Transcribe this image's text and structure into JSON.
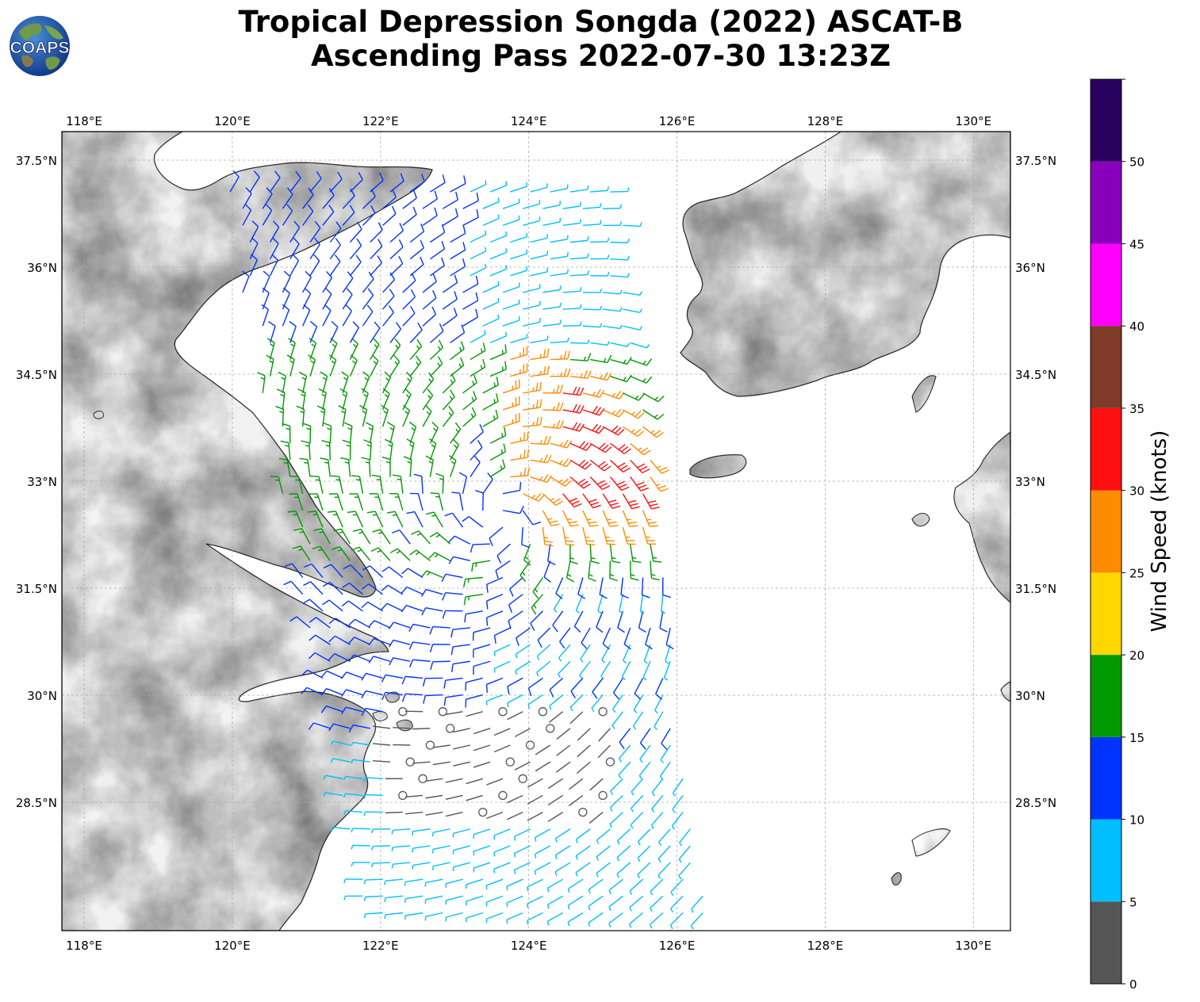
{
  "title": {
    "line1": "Tropical Depression Songda (2022) ASCAT-B",
    "line2": "Ascending Pass 2022-07-30 13:23Z"
  },
  "logo": {
    "text": "COAPS",
    "icon": "globe-icon"
  },
  "map": {
    "lon_range": [
      117.7,
      130.5
    ],
    "lat_range": [
      26.7,
      37.9
    ],
    "lon_ticks": [
      "118°E",
      "120°E",
      "122°E",
      "124°E",
      "126°E",
      "128°E",
      "130°E"
    ],
    "lon_tick_values": [
      118,
      120,
      122,
      124,
      126,
      128,
      130
    ],
    "lat_ticks": [
      "28.5°N",
      "30°N",
      "31.5°N",
      "33°N",
      "34.5°N",
      "36°N",
      "37.5°N"
    ],
    "lat_tick_values": [
      28.5,
      30,
      31.5,
      33,
      34.5,
      36,
      37.5
    ],
    "gridlines": true,
    "center_of_circulation": {
      "lon": 123.6,
      "lat": 32.5
    }
  },
  "colorbar": {
    "label": "Wind Speed (knots)",
    "ticks": [
      "0",
      "5",
      "10",
      "15",
      "20",
      "25",
      "30",
      "35",
      "40",
      "45",
      "50"
    ],
    "tick_values": [
      0,
      5,
      10,
      15,
      20,
      25,
      30,
      35,
      40,
      45,
      50
    ],
    "bins": [
      {
        "from": 0,
        "to": 5,
        "color": "#555555"
      },
      {
        "from": 5,
        "to": 10,
        "color": "#00bfff"
      },
      {
        "from": 10,
        "to": 15,
        "color": "#0033ff"
      },
      {
        "from": 15,
        "to": 20,
        "color": "#009900"
      },
      {
        "from": 20,
        "to": 25,
        "color": "#ffd700"
      },
      {
        "from": 25,
        "to": 30,
        "color": "#ff8c00"
      },
      {
        "from": 30,
        "to": 35,
        "color": "#ff1010"
      },
      {
        "from": 35,
        "to": 40,
        "color": "#7f3a28"
      },
      {
        "from": 40,
        "to": 45,
        "color": "#ff00ff"
      },
      {
        "from": 45,
        "to": 50,
        "color": "#8800bb"
      },
      {
        "from": 50,
        "to": 55,
        "color": "#2a0060"
      }
    ]
  }
}
